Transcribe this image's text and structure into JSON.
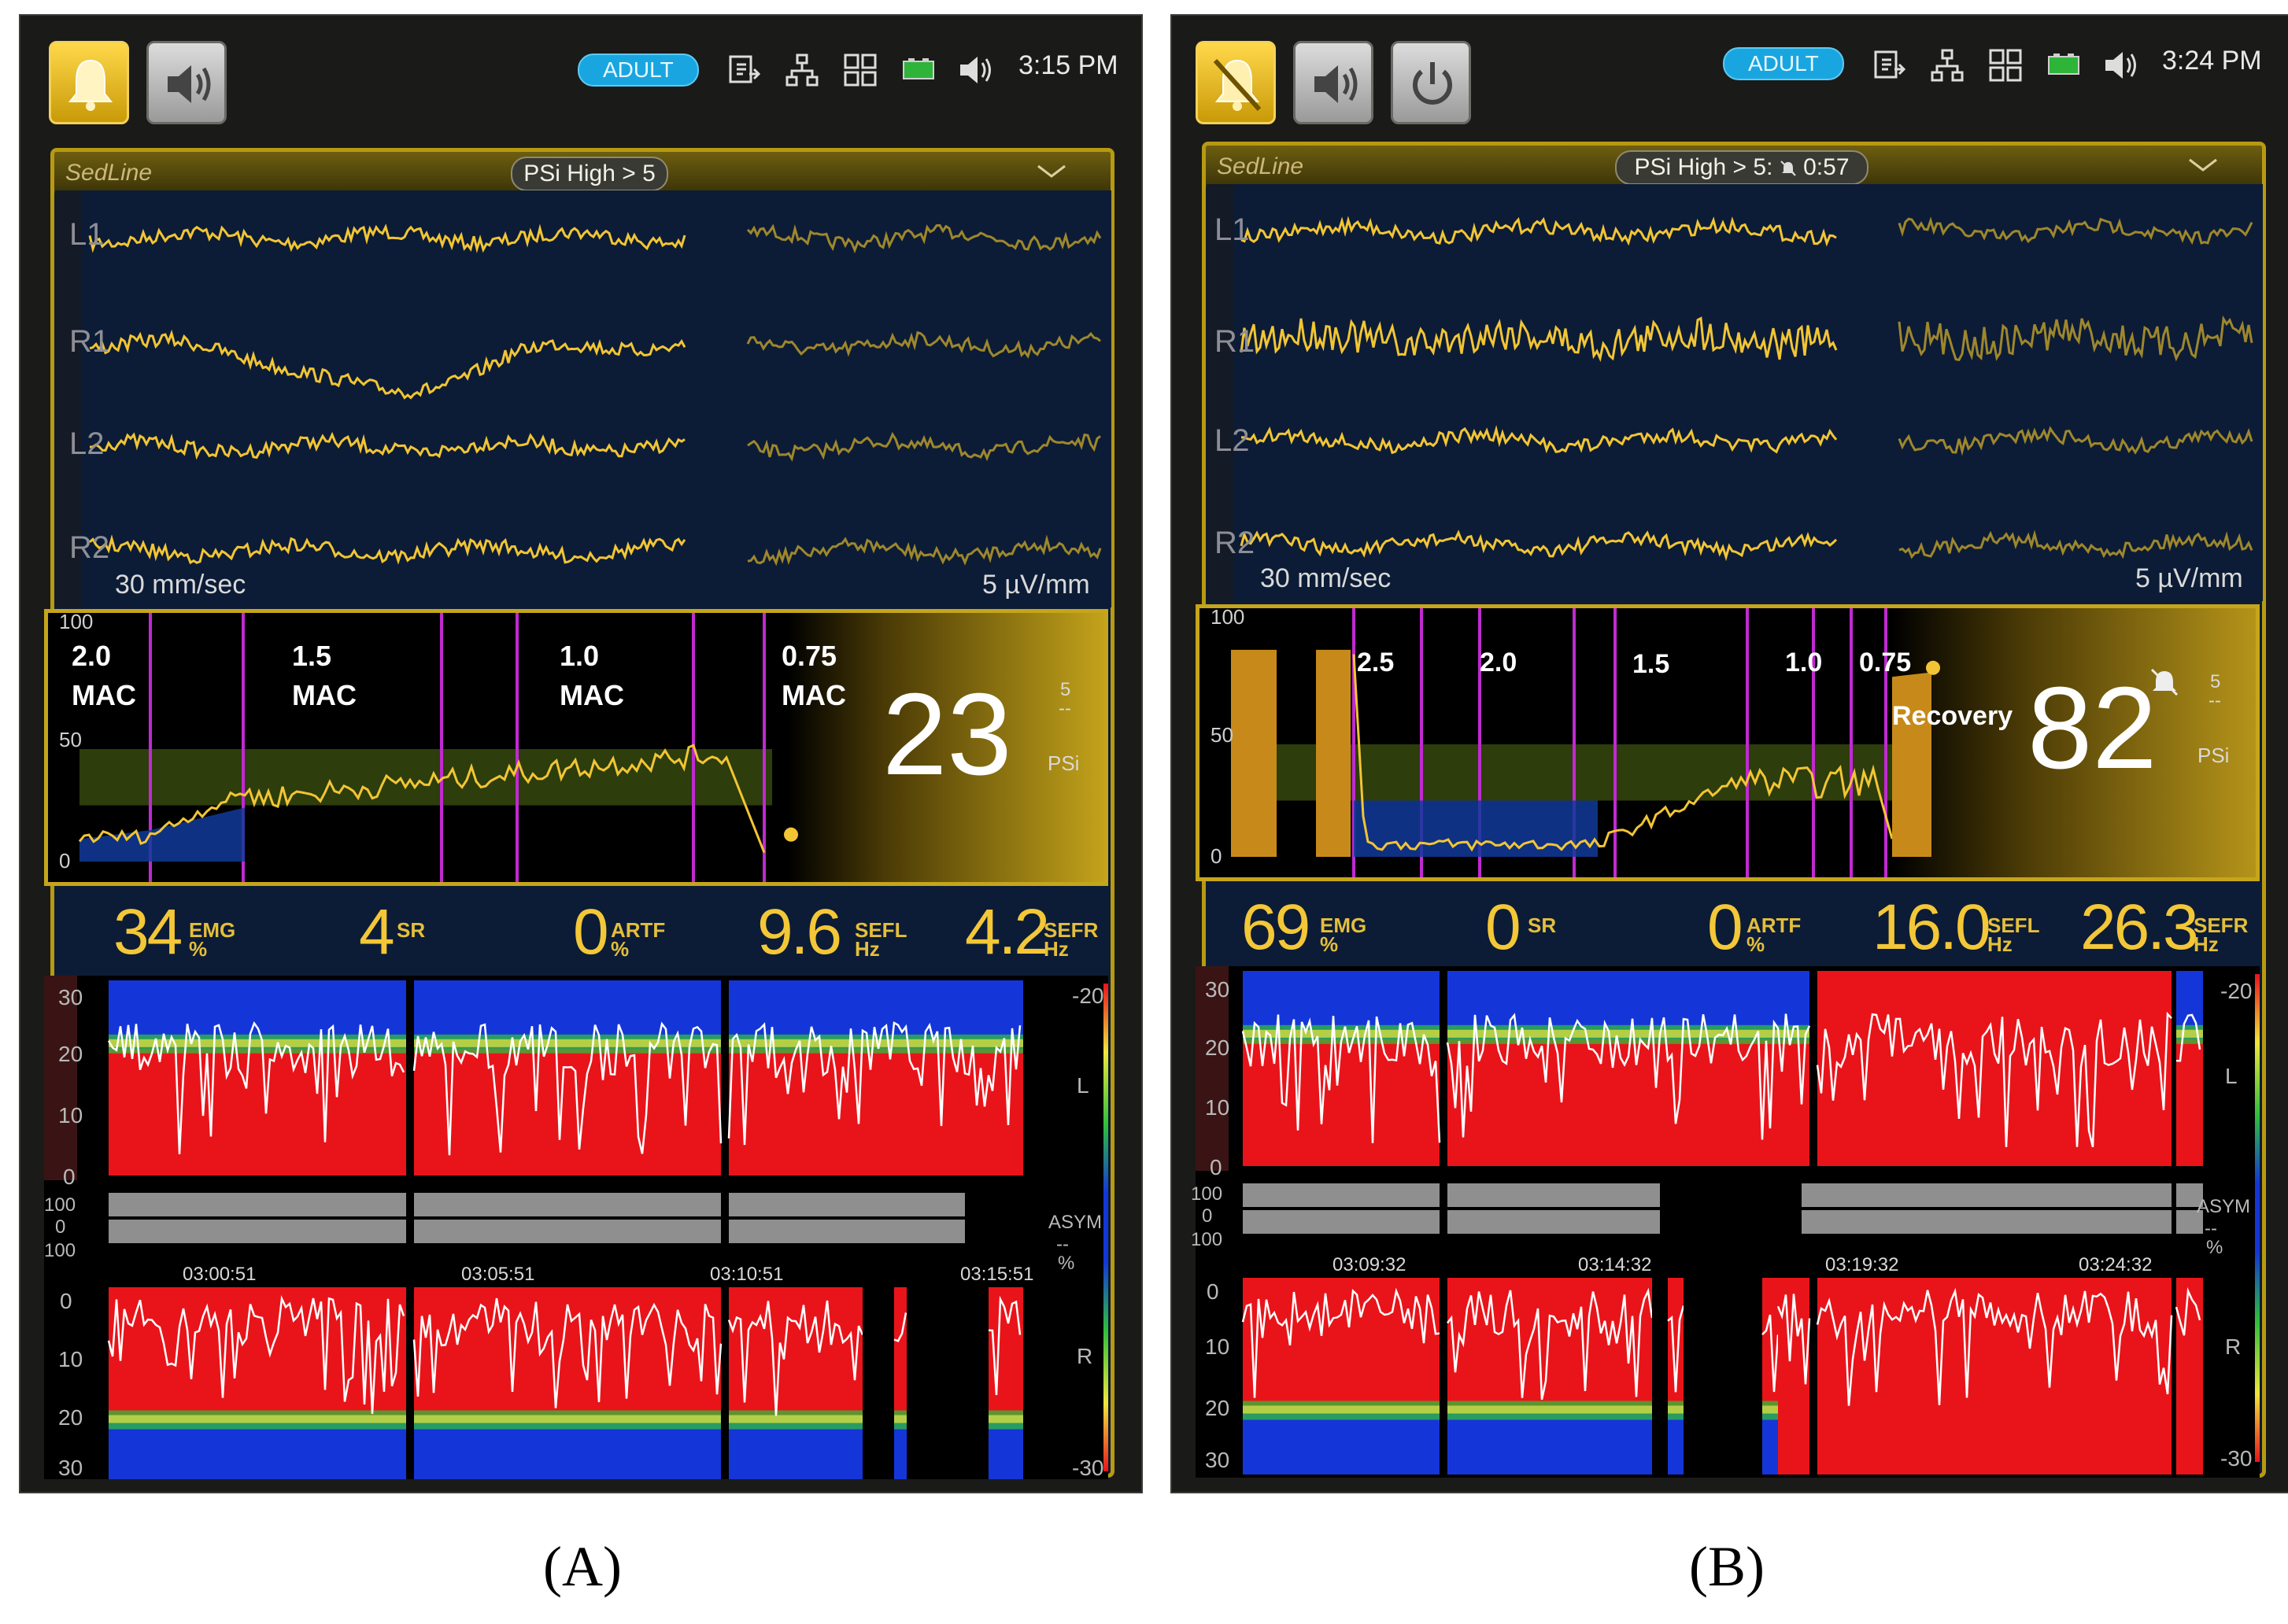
{
  "panels": [
    {
      "id": "A",
      "caption": "(A)",
      "patient_mode": "ADULT",
      "time": "3:15 PM",
      "monitor_name": "SedLine",
      "alarm_banner": "PSi High > 5",
      "leads": [
        "L1",
        "R1",
        "L2",
        "R2"
      ],
      "sweep_speed": "30 mm/sec",
      "amplitude_scale": "5 µV/mm",
      "psi_trend_axis": [
        "100",
        "50",
        "0"
      ],
      "mac_labels": [
        {
          "value": "2.0",
          "unit": "MAC"
        },
        {
          "value": "1.5",
          "unit": "MAC"
        },
        {
          "value": "1.0",
          "unit": "MAC"
        },
        {
          "value": "0.75",
          "unit": "MAC"
        }
      ],
      "psi_value": "23",
      "psi_scale_top": "5",
      "psi_scale_mid": "--",
      "psi_label": "PSi",
      "state_label": "",
      "params": [
        {
          "value": "34",
          "name": "EMG",
          "unit": "%"
        },
        {
          "value": "4",
          "name": "SR",
          "unit": ""
        },
        {
          "value": "0",
          "name": "ARTF",
          "unit": "%"
        },
        {
          "value": "9.6",
          "name": "SEFL",
          "unit": "Hz"
        },
        {
          "value": "4.2",
          "name": "SEFR",
          "unit": "Hz"
        }
      ],
      "dsa_left_axis": [
        "30",
        "20",
        "10",
        "0"
      ],
      "dsa_right_axis": [
        "0",
        "10",
        "20",
        "30"
      ],
      "asym_axis": [
        "100",
        "0",
        "100"
      ],
      "asym_labels": [
        "ASYM",
        "--",
        "%"
      ],
      "colorbar": [
        "-20",
        "L",
        "R",
        "-30"
      ],
      "timestamps": [
        "03:00:51",
        "03:05:51",
        "03:10:51",
        "03:15:51"
      ]
    },
    {
      "id": "B",
      "caption": "(B)",
      "patient_mode": "ADULT",
      "time": "3:24 PM",
      "monitor_name": "SedLine",
      "alarm_banner": "PSi High > 5:",
      "alarm_silence_timer": "0:57",
      "leads": [
        "L1",
        "R1",
        "L2",
        "R2"
      ],
      "sweep_speed": "30 mm/sec",
      "amplitude_scale": "5 µV/mm",
      "psi_trend_axis": [
        "100",
        "50",
        "0"
      ],
      "mac_labels": [
        {
          "value": "2.5",
          "unit": ""
        },
        {
          "value": "2.0",
          "unit": ""
        },
        {
          "value": "1.5",
          "unit": ""
        },
        {
          "value": "1.0",
          "unit": ""
        },
        {
          "value": "0.75",
          "unit": ""
        }
      ],
      "psi_value": "82",
      "psi_scale_top": "5",
      "psi_scale_mid": "--",
      "psi_label": "PSi",
      "state_label": "Recovery",
      "params": [
        {
          "value": "69",
          "name": "EMG",
          "unit": "%"
        },
        {
          "value": "0",
          "name": "SR",
          "unit": ""
        },
        {
          "value": "0",
          "name": "ARTF",
          "unit": "%"
        },
        {
          "value": "16.0",
          "name": "SEFL",
          "unit": "Hz"
        },
        {
          "value": "26.3",
          "name": "SEFR",
          "unit": "Hz"
        }
      ],
      "dsa_left_axis": [
        "30",
        "20",
        "10",
        "0"
      ],
      "dsa_right_axis": [
        "0",
        "10",
        "20",
        "30"
      ],
      "asym_axis": [
        "100",
        "0",
        "100"
      ],
      "asym_labels": [
        "ASYM",
        "--",
        "%"
      ],
      "colorbar": [
        "-20",
        "L",
        "R",
        "-30"
      ],
      "timestamps": [
        "03:09:32",
        "03:14:32",
        "03:19:32",
        "03:24:32"
      ]
    }
  ],
  "colors": {
    "gold": "#c6a51b",
    "trace": "#f2c534",
    "eeg_bg": "#0c1c36",
    "mac_line": "#c02ad0",
    "target_band": "#2d3d0c",
    "low_band": "#123a9a"
  }
}
